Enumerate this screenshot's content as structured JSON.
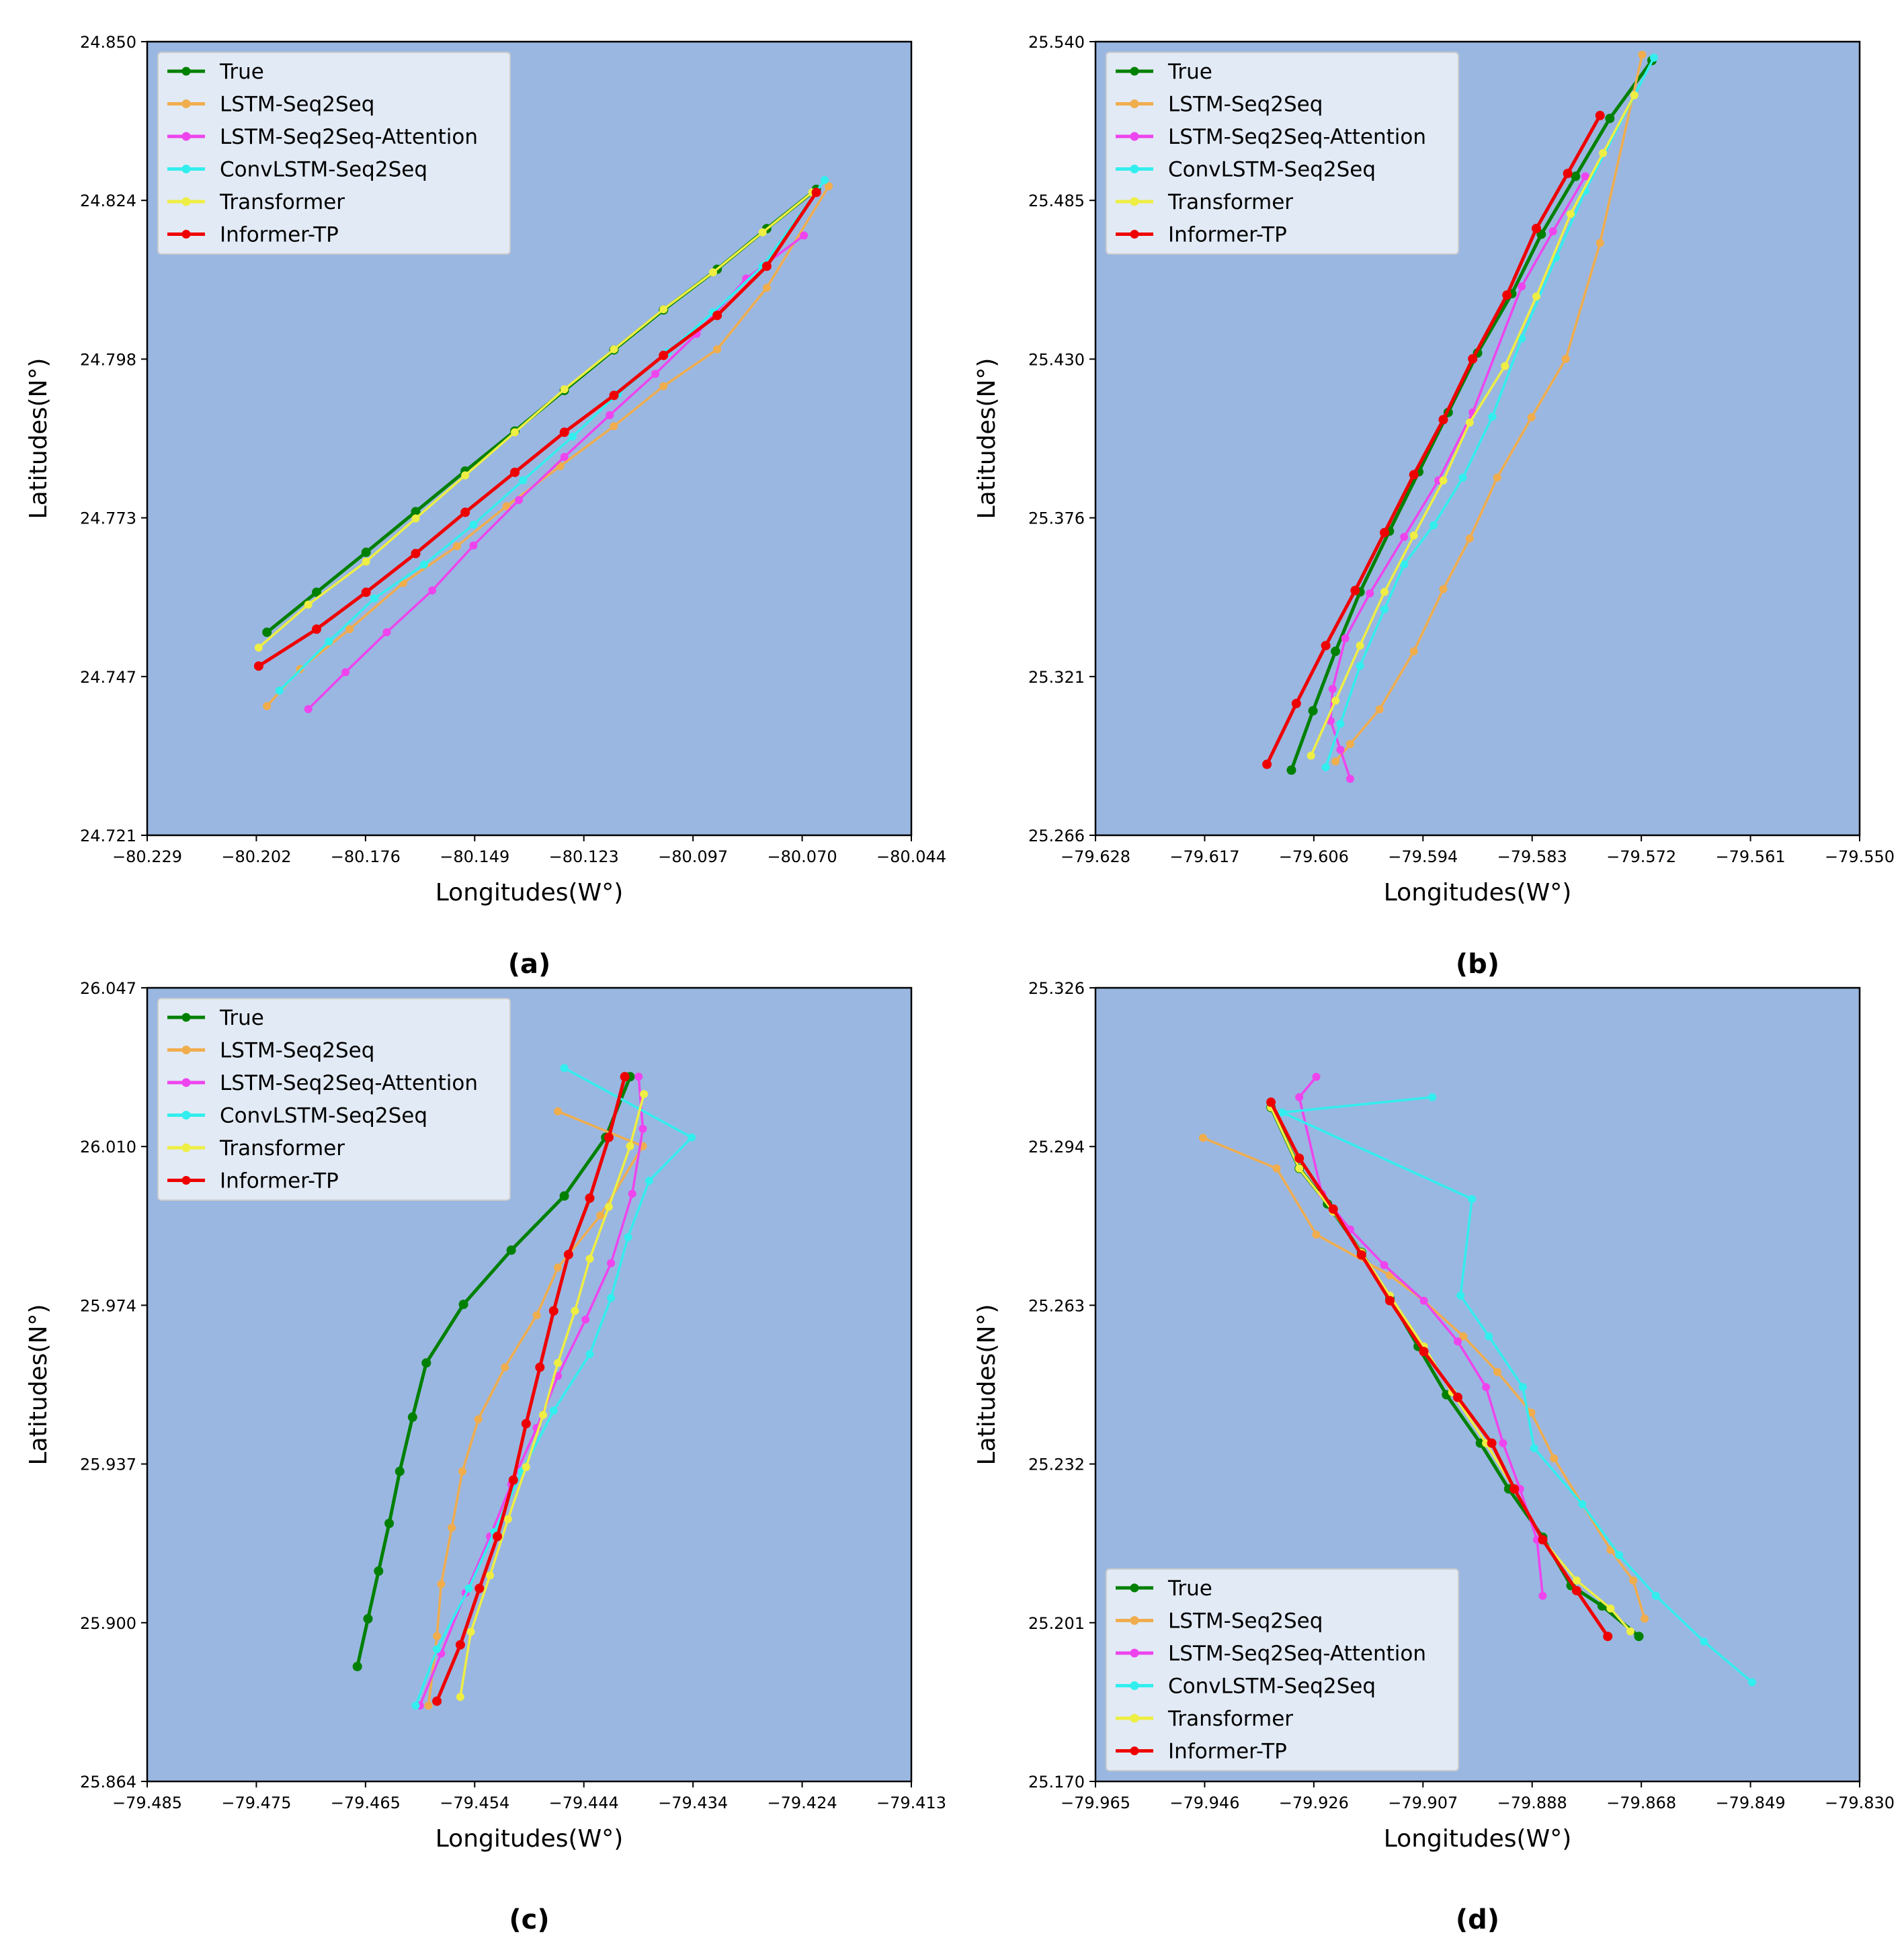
{
  "colors": {
    "True": "#008000",
    "LSTM-Seq2Seq": "#f0ad4e",
    "LSTM-Seq2Seq-Attention": "#ee44ee",
    "ConvLSTM-Seq2Seq": "#33eeee",
    "Transformer": "#eeee44",
    "Informer-TP": "#ee0000",
    "plot_background": "#9ab7e1",
    "legend_background": "#e8eef6"
  },
  "chart_data": [
    {
      "type": "line",
      "caption": "(a)",
      "xlabel": "Longitudes(W°)",
      "ylabel": "Latitudes(N°)",
      "xlim": [
        -80.229,
        -80.044
      ],
      "ylim": [
        24.721,
        24.85
      ],
      "xticks": [
        "−80.229",
        "−80.202",
        "−80.176",
        "−80.149",
        "−80.123",
        "−80.097",
        "−80.070",
        "−80.044"
      ],
      "yticks": [
        "24.721",
        "24.747",
        "24.773",
        "24.798",
        "24.824",
        "24.850"
      ],
      "legend_position": "top-left",
      "series": [
        {
          "name": "True",
          "x": [
            -80.2,
            -80.188,
            -80.176,
            -80.164,
            -80.152,
            -80.14,
            -80.128,
            -80.116,
            -80.104,
            -80.091,
            -80.079,
            -80.067
          ],
          "y": [
            24.754,
            24.7605,
            24.767,
            24.7736,
            24.7802,
            24.7867,
            24.7933,
            24.7999,
            24.8064,
            24.813,
            24.8196,
            24.826
          ]
        },
        {
          "name": "LSTM-Seq2Seq",
          "x": [
            -80.2,
            -80.192,
            -80.18,
            -80.167,
            -80.154,
            -80.142,
            -80.129,
            -80.116,
            -80.104,
            -80.091,
            -80.079,
            -80.064
          ],
          "y": [
            24.742,
            24.748,
            24.7545,
            24.762,
            24.768,
            24.7745,
            24.781,
            24.7875,
            24.794,
            24.8,
            24.81,
            24.8265
          ]
        },
        {
          "name": "LSTM-Seq2Seq-Attention",
          "x": [
            -80.19,
            -80.181,
            -80.171,
            -80.16,
            -80.15,
            -80.139,
            -80.128,
            -80.117,
            -80.106,
            -80.096,
            -80.084,
            -80.07
          ],
          "y": [
            24.7415,
            24.7475,
            24.754,
            24.7608,
            24.7681,
            24.7755,
            24.7825,
            24.7893,
            24.796,
            24.8025,
            24.8115,
            24.8185
          ]
        },
        {
          "name": "ConvLSTM-Seq2Seq",
          "x": [
            -80.197,
            -80.185,
            -80.174,
            -80.162,
            -80.15,
            -80.138,
            -80.126,
            -80.115,
            -80.103,
            -80.092,
            -80.08,
            -80.065
          ],
          "y": [
            24.7445,
            24.7525,
            24.7595,
            24.765,
            24.7715,
            24.7787,
            24.7858,
            24.7928,
            24.7995,
            24.806,
            24.8135,
            24.8275
          ]
        },
        {
          "name": "Transformer",
          "x": [
            -80.202,
            -80.19,
            -80.176,
            -80.164,
            -80.152,
            -80.14,
            -80.128,
            -80.116,
            -80.104,
            -80.092,
            -80.08,
            -80.068
          ],
          "y": [
            24.7515,
            24.7585,
            24.7655,
            24.7725,
            24.7795,
            24.7865,
            24.7935,
            24.8,
            24.8065,
            24.8125,
            24.819,
            24.8255
          ]
        },
        {
          "name": "Informer-TP",
          "x": [
            -80.202,
            -80.188,
            -80.176,
            -80.164,
            -80.152,
            -80.14,
            -80.128,
            -80.116,
            -80.104,
            -80.091,
            -80.079,
            -80.067
          ],
          "y": [
            24.7485,
            24.7545,
            24.7605,
            24.7668,
            24.7735,
            24.78,
            24.7865,
            24.7925,
            24.799,
            24.8055,
            24.8135,
            24.8255
          ]
        }
      ]
    },
    {
      "type": "line",
      "caption": "(b)",
      "xlabel": "Longitudes(W°)",
      "ylabel": "Latitudes(N°)",
      "xlim": [
        -79.628,
        -79.55
      ],
      "ylim": [
        25.266,
        25.54
      ],
      "xticks": [
        "−79.628",
        "−79.617",
        "−79.606",
        "−79.594",
        "−79.583",
        "−79.572",
        "−79.561",
        "−79.550"
      ],
      "yticks": [
        "25.266",
        "25.321",
        "25.376",
        "25.430",
        "25.485",
        "25.540"
      ],
      "legend_position": "top-left",
      "series": [
        {
          "name": "True",
          "x": [
            -79.608,
            -79.6058,
            -79.6035,
            -79.601,
            -79.598,
            -79.595,
            -79.592,
            -79.589,
            -79.5855,
            -79.5825,
            -79.579,
            -79.5755,
            -79.5712
          ],
          "y": [
            25.2885,
            25.309,
            25.3295,
            25.35,
            25.371,
            25.3915,
            25.412,
            25.4325,
            25.453,
            25.4735,
            25.4935,
            25.5135,
            25.5335
          ]
        },
        {
          "name": "LSTM-Seq2Seq",
          "x": [
            -79.6035,
            -79.602,
            -79.599,
            -79.5955,
            -79.5925,
            -79.5898,
            -79.587,
            -79.5835,
            -79.58,
            -79.5765,
            -79.5722
          ],
          "y": [
            25.2915,
            25.2975,
            25.3095,
            25.3295,
            25.351,
            25.3685,
            25.3895,
            25.4103,
            25.4305,
            25.4705,
            25.5355
          ]
        },
        {
          "name": "LSTM-Seq2Seq-Attention",
          "x": [
            -79.602,
            -79.603,
            -79.604,
            -79.6038,
            -79.6025,
            -79.6,
            -79.5965,
            -79.593,
            -79.5895,
            -79.5845,
            -79.5813,
            -79.578
          ],
          "y": [
            25.2855,
            25.2955,
            25.3055,
            25.3165,
            25.334,
            25.3495,
            25.369,
            25.3885,
            25.412,
            25.4555,
            25.4745,
            25.4935
          ]
        },
        {
          "name": "ConvLSTM-Seq2Seq",
          "x": [
            -79.6045,
            -79.603,
            -79.601,
            -79.5985,
            -79.5965,
            -79.5935,
            -79.5905,
            -79.5875,
            -79.5845,
            -79.581,
            -79.578,
            -79.571
          ],
          "y": [
            25.2895,
            25.3045,
            25.3245,
            25.344,
            25.3595,
            25.373,
            25.3895,
            25.4105,
            25.4375,
            25.4655,
            25.4885,
            25.5345
          ]
        },
        {
          "name": "Transformer",
          "x": [
            -79.606,
            -79.6035,
            -79.601,
            -79.5985,
            -79.5955,
            -79.5925,
            -79.5898,
            -79.5862,
            -79.583,
            -79.5795,
            -79.5762,
            -79.573
          ],
          "y": [
            25.2935,
            25.3125,
            25.3315,
            25.35,
            25.3695,
            25.3885,
            25.4085,
            25.428,
            25.452,
            25.4805,
            25.5015,
            25.5215
          ]
        },
        {
          "name": "Informer-TP",
          "x": [
            -79.6105,
            -79.6075,
            -79.6045,
            -79.6015,
            -79.5985,
            -79.5955,
            -79.5925,
            -79.5895,
            -79.586,
            -79.583,
            -79.5798,
            -79.5765
          ],
          "y": [
            25.2905,
            25.3115,
            25.3315,
            25.3505,
            25.3705,
            25.3905,
            25.4095,
            25.4305,
            25.4525,
            25.4755,
            25.4945,
            25.5145
          ]
        }
      ]
    },
    {
      "type": "line",
      "caption": "(c)",
      "xlabel": "Longitudes(W°)",
      "ylabel": "Latitudes(N°)",
      "xlim": [
        -79.485,
        -79.413
      ],
      "ylim": [
        25.864,
        26.047
      ],
      "xticks": [
        "−79.485",
        "−79.475",
        "−79.465",
        "−79.454",
        "−79.444",
        "−79.434",
        "−79.424",
        "−79.413"
      ],
      "yticks": [
        "25.864",
        "25.900",
        "25.937",
        "25.974",
        "26.010",
        "26.047"
      ],
      "legend_position": "top-left",
      "series": [
        {
          "name": "True",
          "x": [
            -79.4652,
            -79.4642,
            -79.4632,
            -79.4622,
            -79.4612,
            -79.46,
            -79.4587,
            -79.4552,
            -79.4507,
            -79.4457,
            -79.4418,
            -79.4395
          ],
          "y": [
            25.8905,
            25.9015,
            25.9125,
            25.9235,
            25.9355,
            25.948,
            25.9605,
            25.974,
            25.9865,
            25.999,
            26.0125,
            26.0265
          ]
        },
        {
          "name": "LSTM-Seq2Seq",
          "x": [
            -79.4585,
            -79.4577,
            -79.4573,
            -79.4563,
            -79.4553,
            -79.4538,
            -79.4513,
            -79.4483,
            -79.4463,
            -79.4423,
            -79.4383,
            -79.4463
          ],
          "y": [
            25.8815,
            25.8975,
            25.9095,
            25.9225,
            25.9355,
            25.9475,
            25.9595,
            25.9715,
            25.9825,
            25.9945,
            26.0105,
            26.0185
          ]
        },
        {
          "name": "LSTM-Seq2Seq-Attention",
          "x": [
            -79.4593,
            -79.4573,
            -79.455,
            -79.4527,
            -79.4507,
            -79.4483,
            -79.4463,
            -79.4437,
            -79.4413,
            -79.4393,
            -79.4383,
            -79.4387
          ],
          "y": [
            25.8815,
            25.8935,
            25.9075,
            25.9205,
            25.9325,
            25.9455,
            25.9575,
            25.9705,
            25.9835,
            25.9995,
            26.0145,
            26.0265
          ]
        },
        {
          "name": "ConvLSTM-Seq2Seq",
          "x": [
            -79.4597,
            -79.4577,
            -79.4547,
            -79.4523,
            -79.4497,
            -79.4467,
            -79.4433,
            -79.4413,
            -79.4397,
            -79.4377,
            -79.4337,
            -79.4457
          ],
          "y": [
            25.8815,
            25.8945,
            25.9085,
            25.9215,
            25.9355,
            25.9495,
            25.9625,
            25.9755,
            25.9895,
            26.0025,
            26.0125,
            26.0285
          ]
        },
        {
          "name": "Transformer",
          "x": [
            -79.4555,
            -79.4545,
            -79.4527,
            -79.451,
            -79.4493,
            -79.4477,
            -79.4463,
            -79.4447,
            -79.4433,
            -79.4415,
            -79.4395,
            -79.4382
          ],
          "y": [
            25.8835,
            25.8985,
            25.9115,
            25.9245,
            25.9365,
            25.9485,
            25.9605,
            25.9725,
            25.9845,
            25.9965,
            26.0105,
            26.0225
          ]
        },
        {
          "name": "Informer-TP",
          "x": [
            -79.4577,
            -79.4555,
            -79.4537,
            -79.452,
            -79.4505,
            -79.4493,
            -79.448,
            -79.4467,
            -79.4453,
            -79.4433,
            -79.4415,
            -79.44
          ],
          "y": [
            25.8825,
            25.8955,
            25.9085,
            25.9205,
            25.9335,
            25.9465,
            25.9595,
            25.9725,
            25.9855,
            25.9985,
            26.0125,
            26.0265
          ]
        }
      ]
    },
    {
      "type": "line",
      "caption": "(d)",
      "xlabel": "Longitudes(W°)",
      "ylabel": "Latitudes(N°)",
      "xlim": [
        -79.965,
        -79.83
      ],
      "ylim": [
        25.17,
        25.326
      ],
      "xticks": [
        "−79.965",
        "−79.946",
        "−79.926",
        "−79.907",
        "−79.888",
        "−79.868",
        "−79.849",
        "−79.830"
      ],
      "yticks": [
        "25.170",
        "25.201",
        "25.232",
        "25.263",
        "25.294",
        "25.326"
      ],
      "legend_position": "bottom-left",
      "series": [
        {
          "name": "True",
          "x": [
            -79.934,
            -79.929,
            -79.924,
            -79.918,
            -79.913,
            -79.908,
            -79.903,
            -79.897,
            -79.892,
            -79.886,
            -79.881,
            -79.8755,
            -79.869
          ],
          "y": [
            25.3025,
            25.2905,
            25.2835,
            25.274,
            25.265,
            25.2555,
            25.246,
            25.2365,
            25.2275,
            25.218,
            25.2085,
            25.2045,
            25.1985
          ]
        },
        {
          "name": "LSTM-Seq2Seq",
          "x": [
            -79.946,
            -79.933,
            -79.926,
            -79.913,
            -79.907,
            -79.9,
            -79.894,
            -79.888,
            -79.884,
            -79.879,
            -79.874,
            -79.87,
            -79.868
          ],
          "y": [
            25.2965,
            25.2905,
            25.2775,
            25.2695,
            25.2645,
            25.2575,
            25.2505,
            25.2425,
            25.2335,
            25.2245,
            25.2155,
            25.2095,
            25.202
          ]
        },
        {
          "name": "LSTM-Seq2Seq-Attention",
          "x": [
            -79.926,
            -79.929,
            -79.925,
            -79.92,
            -79.914,
            -79.907,
            -79.901,
            -79.896,
            -79.893,
            -79.89,
            -79.887,
            -79.886
          ],
          "y": [
            25.3085,
            25.3045,
            25.2855,
            25.2785,
            25.2715,
            25.2645,
            25.2565,
            25.2475,
            25.2365,
            25.2275,
            25.2175,
            25.2065
          ]
        },
        {
          "name": "ConvLSTM-Seq2Seq",
          "x": [
            -79.9055,
            -79.932,
            -79.8985,
            -79.9005,
            -79.8955,
            -79.8895,
            -79.8875,
            -79.879,
            -79.8725,
            -79.866,
            -79.8575,
            -79.849
          ],
          "y": [
            25.3045,
            25.3015,
            25.2845,
            25.2655,
            25.2575,
            25.2475,
            25.2355,
            25.2245,
            25.2145,
            25.2065,
            25.1975,
            25.1895
          ]
        },
        {
          "name": "Transformer",
          "x": [
            -79.934,
            -79.929,
            -79.923,
            -79.918,
            -79.913,
            -79.907,
            -79.902,
            -79.896,
            -79.891,
            -79.886,
            -79.88,
            -79.874,
            -79.8705
          ],
          "y": [
            25.3025,
            25.2905,
            25.282,
            25.274,
            25.2655,
            25.2555,
            25.2465,
            25.2365,
            25.2275,
            25.2175,
            25.2095,
            25.204,
            25.1995
          ]
        },
        {
          "name": "Informer-TP",
          "x": [
            -79.934,
            -79.929,
            -79.923,
            -79.918,
            -79.913,
            -79.907,
            -79.901,
            -79.895,
            -79.891,
            -79.886,
            -79.88,
            -79.8745
          ],
          "y": [
            25.3035,
            25.2925,
            25.2825,
            25.2735,
            25.2645,
            25.2545,
            25.2455,
            25.2365,
            25.2275,
            25.2175,
            25.2075,
            25.1985
          ]
        }
      ]
    }
  ]
}
